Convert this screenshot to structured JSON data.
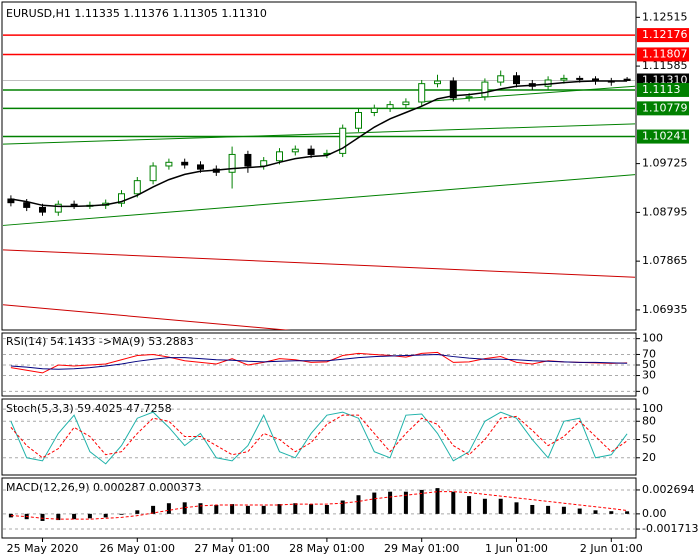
{
  "chart_data": [
    {
      "type": "candlestick",
      "title": "EURUSD,H1  1.11335 1.11376 1.11305 1.11310",
      "categories": [
        null,
        null,
        "25 May 2020",
        null,
        null,
        null,
        null,
        null,
        "26 May 01:00",
        null,
        null,
        null,
        null,
        null,
        "27 May 01:00",
        null,
        null,
        null,
        null,
        null,
        "28 May 01:00",
        null,
        null,
        null,
        null,
        null,
        "29 May 01:00",
        null,
        null,
        null,
        null,
        null,
        "1 Jun 01:00",
        null,
        null,
        null,
        null,
        null,
        "2 Jun 01:00",
        null
      ],
      "open": [
        1.0905,
        1.0898,
        1.0889,
        1.088,
        1.0895,
        1.0893,
        1.0893,
        1.0897,
        1.0915,
        1.094,
        1.0968,
        1.0975,
        1.097,
        1.0962,
        1.0956,
        1.099,
        1.0968,
        1.0978,
        1.0995,
        1.1,
        1.099,
        1.0992,
        1.104,
        1.107,
        1.1078,
        1.1085,
        1.109,
        1.1125,
        1.113,
        1.1098,
        1.11,
        1.1128,
        1.114,
        1.1125,
        1.112,
        1.1132,
        1.1135,
        1.1134,
        1.113,
        1.11335
      ],
      "high": [
        1.0912,
        1.0905,
        1.0896,
        1.0902,
        1.0902,
        1.09,
        1.0904,
        1.0922,
        1.0947,
        1.0975,
        1.0982,
        1.0982,
        1.0977,
        1.0969,
        1.1005,
        1.0997,
        1.0985,
        1.1002,
        1.1007,
        1.1007,
        1.0999,
        1.1047,
        1.1077,
        1.1085,
        1.1092,
        1.1097,
        1.1132,
        1.1142,
        1.1137,
        1.1107,
        1.1135,
        1.115,
        1.1147,
        1.1132,
        1.1139,
        1.1142,
        1.114,
        1.1139,
        1.1136,
        1.11376
      ],
      "low": [
        1.0891,
        1.0882,
        1.0873,
        1.0873,
        1.0886,
        1.0886,
        1.0886,
        1.089,
        1.0908,
        1.0933,
        1.0961,
        1.0963,
        1.0955,
        1.0949,
        1.0925,
        1.0955,
        1.0961,
        1.0971,
        1.0988,
        1.0983,
        1.0983,
        1.0985,
        1.1033,
        1.1063,
        1.1071,
        1.1078,
        1.1083,
        1.1118,
        1.1091,
        1.1091,
        1.1093,
        1.1121,
        1.1118,
        1.1113,
        1.1113,
        1.1125,
        1.1127,
        1.1123,
        1.1121,
        1.11305
      ],
      "close": [
        1.0898,
        1.0889,
        1.088,
        1.0895,
        1.0893,
        1.0893,
        1.0897,
        1.0915,
        1.094,
        1.0968,
        1.0975,
        1.097,
        1.0962,
        1.0956,
        1.099,
        1.0968,
        1.0978,
        1.0995,
        1.1,
        1.099,
        1.0992,
        1.104,
        1.107,
        1.1078,
        1.1085,
        1.109,
        1.1125,
        1.113,
        1.1098,
        1.11,
        1.1128,
        1.114,
        1.1125,
        1.112,
        1.1132,
        1.1135,
        1.1134,
        1.113,
        1.1128,
        1.1131
      ],
      "up_color": "#008000",
      "down_color": "#000000",
      "series": [
        {
          "color": "#000000",
          "values": [
            1.0905,
            1.09,
            1.0893,
            1.0891,
            1.0891,
            1.0892,
            1.0894,
            1.09,
            1.0912,
            1.0928,
            1.0942,
            1.0952,
            1.0958,
            1.096,
            1.0963,
            1.0965,
            1.0967,
            1.0975,
            1.0982,
            1.0986,
            1.0988,
            1.1002,
            1.1022,
            1.1042,
            1.1058,
            1.107,
            1.1082,
            1.1096,
            1.1102,
            1.1104,
            1.1108,
            1.1115,
            1.112,
            1.1122,
            1.1124,
            1.1127,
            1.1129,
            1.113,
            1.113,
            1.113
          ]
        }
      ],
      "levels": [
        {
          "value": 1.12176,
          "color": "#ff0000"
        },
        {
          "value": 1.11807,
          "color": "#ff0000"
        },
        {
          "value": {
            "value": 1.1131,
            "label": "1.11310"
          },
          "color": "#000000"
        },
        {
          "value": 1.1113,
          "color": "#008000"
        },
        {
          "value": 1.10779,
          "color": "#008000"
        },
        {
          "value": 1.10241,
          "color": "#008000"
        }
      ],
      "trendlines": [
        {
          "color": "#008000",
          "x": [
            -0.5,
            39.5
          ],
          "values": [
            1.08546,
            1.09514
          ]
        },
        {
          "color": "#008000",
          "x": [
            -0.5,
            39.5
          ],
          "values": [
            1.10096,
            1.10483
          ]
        },
        {
          "color": "#008000",
          "x": [
            26.2,
            39.5
          ],
          "values": [
            1.10909,
            1.112
          ]
        },
        {
          "color": "#cc0000",
          "x": [
            -0.5,
            39.5
          ],
          "values": [
            1.08081,
            1.07557
          ]
        },
        {
          "color": "#cc0000",
          "x": [
            -0.5,
            19.6
          ],
          "values": [
            1.07034,
            1.06492
          ]
        }
      ],
      "xlim": [
        -0.5,
        39.5
      ],
      "ylim": [
        1.0659,
        1.1275
      ],
      "yticks": [
        1.12515,
        1.11585,
        1.09725,
        1.08795,
        1.07865,
        1.06935
      ]
    },
    {
      "type": "line",
      "title": "RSI(14) 54.1433 ->MA(9) 53.2883",
      "ylim": [
        -5,
        105
      ],
      "yticks": [
        100,
        70,
        50,
        30,
        0
      ],
      "series": [
        {
          "color": "#ff0000",
          "values": [
            45,
            40,
            35,
            50,
            48,
            50,
            52,
            60,
            68,
            70,
            65,
            58,
            55,
            52,
            62,
            50,
            55,
            62,
            60,
            55,
            56,
            68,
            72,
            70,
            68,
            65,
            72,
            74,
            55,
            56,
            62,
            66,
            55,
            52,
            58,
            56,
            55,
            54,
            53,
            54.1433
          ]
        },
        {
          "color": "#000080",
          "values": [
            48,
            46,
            43,
            42,
            43,
            45,
            48,
            52,
            57,
            61,
            64,
            64,
            62,
            60,
            59,
            57,
            56,
            57,
            58,
            58,
            58,
            61,
            64,
            66,
            67,
            68,
            69,
            70,
            66,
            63,
            61,
            61,
            60,
            58,
            57,
            56,
            55,
            55,
            54,
            53.2883
          ]
        }
      ]
    },
    {
      "type": "line",
      "title": "Stoch(5,3,3) 59.4025 47.7258",
      "ylim": [
        -5,
        110
      ],
      "yticks": [
        100,
        80,
        50,
        20
      ],
      "series": [
        {
          "color": "#20b2aa",
          "values": [
            80,
            20,
            15,
            60,
            90,
            30,
            10,
            40,
            85,
            95,
            70,
            40,
            60,
            20,
            15,
            40,
            90,
            30,
            20,
            60,
            90,
            95,
            85,
            30,
            20,
            90,
            92,
            60,
            15,
            30,
            80,
            95,
            85,
            50,
            20,
            80,
            85,
            20,
            25,
            59.4025
          ]
        },
        {
          "color": "#ff0000",
          "dash": true,
          "values": [
            70,
            40,
            20,
            35,
            70,
            55,
            25,
            30,
            60,
            85,
            80,
            55,
            55,
            40,
            25,
            30,
            60,
            50,
            30,
            45,
            75,
            90,
            90,
            60,
            30,
            60,
            85,
            75,
            40,
            25,
            50,
            85,
            88,
            65,
            40,
            55,
            80,
            55,
            30,
            47.7258
          ]
        }
      ]
    },
    {
      "type": "bar",
      "title": "MACD(12,26,9) 0.000287 0.000373",
      "ylim": [
        -0.00227,
        0.00359
      ],
      "yticks": [
        0.002694,
        {
          "value": 0,
          "label": "0.00"
        },
        -0.001713
      ],
      "color": "#000000",
      "values": [
        -0.0004,
        -0.0006,
        -0.0008,
        -0.0007,
        -0.0006,
        -0.0005,
        -0.0004,
        -0.0001,
        0.0004,
        0.0009,
        0.0012,
        0.0013,
        0.0012,
        0.001,
        0.0011,
        0.0009,
        0.0009,
        0.0011,
        0.0012,
        0.0011,
        0.001,
        0.0015,
        0.0021,
        0.0024,
        0.0025,
        0.0025,
        0.0027,
        0.0029,
        0.0025,
        0.002,
        0.0017,
        0.0017,
        0.0013,
        0.001,
        0.0009,
        0.0008,
        0.0006,
        0.0004,
        0.0003,
        0.000287
      ],
      "series": [
        {
          "color": "#ff0000",
          "dash": true,
          "values": [
            -0.0002,
            -0.0003,
            -0.0005,
            -0.0006,
            -0.0006,
            -0.0006,
            -0.0005,
            -0.0004,
            -0.0002,
            0.0001,
            0.0004,
            0.0007,
            0.0009,
            0.001,
            0.001,
            0.001,
            0.001,
            0.001,
            0.0011,
            0.0011,
            0.0011,
            0.0012,
            0.0014,
            0.0017,
            0.0019,
            0.0021,
            0.0023,
            0.0025,
            0.0025,
            0.0024,
            0.0022,
            0.002,
            0.0018,
            0.0016,
            0.0014,
            0.0012,
            0.001,
            0.0008,
            0.0006,
            0.000373
          ]
        }
      ]
    }
  ]
}
